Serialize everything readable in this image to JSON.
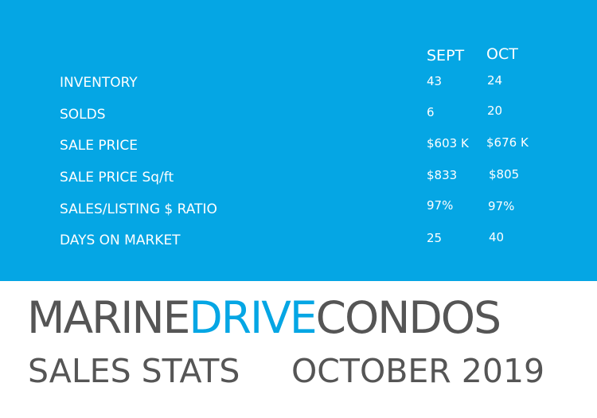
{
  "stats": {
    "columns": [
      "SEPT",
      "OCT"
    ],
    "rows": [
      {
        "label": "INVENTORY",
        "values": [
          "43",
          "24"
        ]
      },
      {
        "label": "SOLDS",
        "values": [
          "6",
          "20"
        ]
      },
      {
        "label": "SALE PRICE",
        "values": [
          "$603 K",
          "$676 K"
        ]
      },
      {
        "label": "SALE PRICE Sq/ft",
        "values": [
          "$833",
          "$805"
        ]
      },
      {
        "label": "SALES/LISTING $ RATIO",
        "values": [
          "97%",
          "97%"
        ]
      },
      {
        "label": "DAYS ON MARKET",
        "values": [
          "25",
          "40"
        ]
      }
    ]
  },
  "brand": {
    "part1": "MARINE",
    "part2": "DRIVE",
    "part3": "CONDOS"
  },
  "subtitle": {
    "left": "SALES STATS",
    "right": "OCTOBER 2019"
  },
  "colors": {
    "panel": "#05a6e4",
    "accent": "#05a6e4",
    "text_dark": "#555555"
  }
}
